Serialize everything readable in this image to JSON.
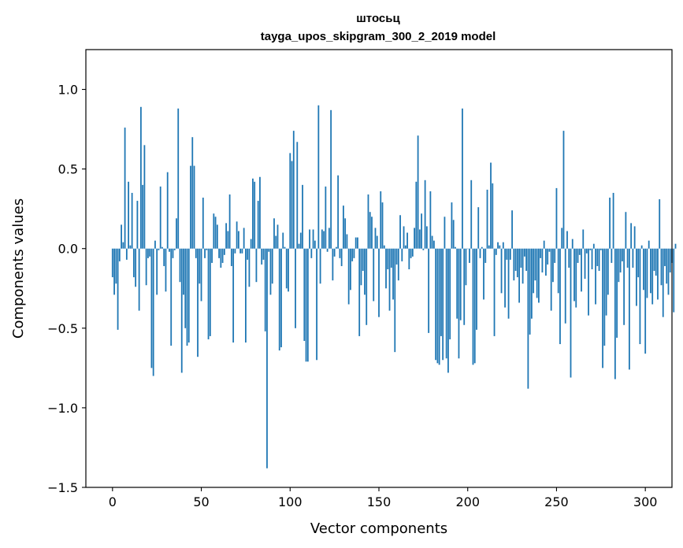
{
  "chart_data": {
    "type": "bar",
    "title": "штосьц",
    "subtitle": "tayga_upos_skipgram_300_2_2019 model",
    "xlabel": "Vector components",
    "ylabel": "Components values",
    "xlim": [
      -15,
      315
    ],
    "ylim": [
      -1.5,
      1.25
    ],
    "xticks": [
      0,
      50,
      100,
      150,
      200,
      250,
      300
    ],
    "xtick_labels": [
      "0",
      "50",
      "100",
      "150",
      "200",
      "250",
      "300"
    ],
    "yticks": [
      -1.5,
      -1.0,
      -0.5,
      0.0,
      0.5,
      1.0
    ],
    "ytick_labels": [
      "−1.5",
      "−1.0",
      "−0.5",
      "0.0",
      "0.5",
      "1.0"
    ],
    "bar_color": "#1f77b4",
    "grid": false,
    "values": [
      -0.18,
      -0.29,
      -0.22,
      -0.51,
      -0.08,
      0.15,
      0.04,
      0.76,
      -0.07,
      0.42,
      0.02,
      0.35,
      -0.18,
      -0.24,
      0.3,
      -0.39,
      0.89,
      0.4,
      0.65,
      -0.23,
      -0.06,
      -0.05,
      -0.75,
      -0.8,
      0.05,
      -0.29,
      -0.01,
      0.39,
      0.01,
      -0.11,
      -0.27,
      0.48,
      -0.02,
      -0.61,
      -0.06,
      -0.01,
      0.19,
      0.88,
      -0.21,
      -0.78,
      -0.29,
      -0.5,
      -0.61,
      -0.59,
      0.52,
      0.7,
      0.52,
      -0.06,
      -0.68,
      -0.22,
      -0.33,
      0.32,
      -0.06,
      -0.01,
      -0.57,
      -0.55,
      -0.09,
      0.22,
      0.2,
      0.15,
      -0.06,
      -0.12,
      -0.09,
      -0.04,
      0.16,
      0.11,
      0.34,
      -0.11,
      -0.59,
      -0.03,
      0.17,
      0.11,
      -0.03,
      -0.03,
      0.13,
      -0.59,
      -0.07,
      -0.24,
      0.06,
      0.44,
      0.42,
      -0.21,
      0.3,
      0.45,
      -0.1,
      -0.07,
      -0.52,
      -1.38,
      -0.02,
      -0.29,
      -0.22,
      0.19,
      0.08,
      0.15,
      -0.64,
      -0.62,
      0.1,
      0.01,
      -0.25,
      -0.27,
      0.6,
      0.55,
      0.74,
      -0.5,
      0.67,
      0.03,
      0.1,
      0.4,
      -0.58,
      -0.71,
      -0.71,
      0.12,
      -0.06,
      0.12,
      0.05,
      -0.7,
      0.9,
      -0.22,
      0.12,
      0.11,
      0.39,
      -0.02,
      0.13,
      0.87,
      -0.2,
      -0.05,
      0.01,
      0.46,
      -0.06,
      -0.11,
      0.27,
      0.19,
      0.09,
      -0.35,
      -0.26,
      -0.08,
      -0.06,
      0.07,
      0.07,
      -0.55,
      -0.23,
      -0.14,
      -0.29,
      -0.48,
      0.34,
      0.23,
      0.2,
      -0.33,
      0.13,
      0.08,
      -0.43,
      0.36,
      0.29,
      0.02,
      -0.25,
      -0.13,
      -0.39,
      -0.12,
      -0.32,
      -0.65,
      -0.1,
      -0.2,
      0.21,
      -0.08,
      0.14,
      0.02,
      0.1,
      -0.13,
      -0.06,
      -0.05,
      0.13,
      0.42,
      0.71,
      0.12,
      0.22,
      -0.01,
      0.43,
      0.14,
      -0.53,
      0.36,
      0.08,
      0.05,
      -0.7,
      -0.72,
      -0.73,
      -0.55,
      -0.7,
      0.2,
      -0.69,
      -0.78,
      -0.57,
      0.29,
      0.18,
      0.01,
      -0.44,
      -0.69,
      -0.45,
      0.88,
      -0.48,
      -0.23,
      0.0,
      -0.09,
      0.43,
      -0.73,
      -0.72,
      -0.51,
      0.26,
      -0.06,
      0.01,
      -0.32,
      -0.09,
      0.37,
      0.02,
      0.54,
      0.41,
      -0.55,
      -0.04,
      0.04,
      0.02,
      -0.28,
      0.04,
      -0.37,
      -0.07,
      -0.44,
      -0.07,
      0.24,
      -0.2,
      -0.14,
      -0.18,
      -0.34,
      -0.12,
      -0.22,
      -0.05,
      -0.14,
      -0.88,
      -0.54,
      -0.44,
      -0.28,
      -0.2,
      -0.31,
      -0.34,
      -0.06,
      -0.15,
      0.05,
      -0.17,
      -0.1,
      -0.02,
      -0.39,
      -0.21,
      -0.09,
      0.38,
      -0.28,
      -0.6,
      0.13,
      0.74,
      -0.47,
      0.11,
      -0.12,
      -0.81,
      0.06,
      -0.33,
      -0.37,
      -0.09,
      -0.04,
      -0.27,
      0.12,
      -0.19,
      -0.03,
      -0.42,
      -0.01,
      -0.13,
      0.03,
      -0.35,
      -0.11,
      -0.14,
      -0.01,
      -0.75,
      -0.61,
      -0.42,
      -0.29,
      0.32,
      -0.09,
      0.35,
      -0.82,
      -0.56,
      -0.21,
      -0.15,
      -0.08,
      -0.48,
      0.23,
      -0.12,
      -0.76,
      0.16,
      -0.12,
      0.14,
      -0.36,
      -0.18,
      -0.6,
      0.02,
      -0.26,
      -0.66,
      -0.31,
      0.05,
      -0.28,
      -0.35,
      -0.14,
      -0.17,
      -0.32,
      0.31,
      -0.23,
      -0.43,
      -0.11,
      -0.22,
      -0.29,
      -0.15,
      -0.09,
      -0.4,
      0.03
    ]
  }
}
